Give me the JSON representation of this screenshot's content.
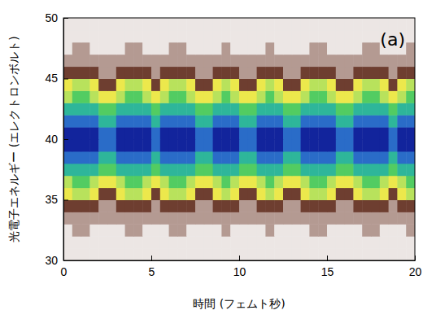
{
  "chart_data": {
    "type": "heatmap",
    "xlabel": "時間 (フェムト秒)",
    "ylabel": "光電子エネルギー (エレクトロンボルト)",
    "annotation": "(a)",
    "xlim": [
      0,
      20
    ],
    "ylim": [
      30,
      50
    ],
    "xticks": [
      0,
      5,
      10,
      15,
      20
    ],
    "yticks": [
      30,
      35,
      40,
      45,
      50
    ],
    "x": [
      0.25,
      0.75,
      1.25,
      1.75,
      2.25,
      2.75,
      3.25,
      3.75,
      4.25,
      4.75,
      5.25,
      5.75,
      6.25,
      6.75,
      7.25,
      7.75,
      8.25,
      8.75,
      9.25,
      9.75,
      10.25,
      10.75,
      11.25,
      11.75,
      12.25,
      12.75,
      13.25,
      13.75,
      14.25,
      14.75,
      15.25,
      15.75,
      16.25,
      16.75,
      17.25,
      17.75,
      18.25,
      18.75,
      19.25,
      19.75
    ],
    "y": [
      30.5,
      31.5,
      32.5,
      33.5,
      34.5,
      35.5,
      36.5,
      37.5,
      38.5,
      39.5,
      40.5,
      41.5,
      42.5,
      43.5,
      44.5,
      45.5,
      46.5,
      47.5,
      48.5,
      49.5
    ],
    "z": [
      [
        1,
        1,
        1,
        1,
        1,
        1,
        1,
        1,
        1,
        1,
        1,
        1,
        1,
        1,
        1,
        1,
        1,
        1,
        1,
        1,
        1,
        1,
        1,
        1,
        1,
        1,
        1,
        1,
        1,
        1,
        1,
        1,
        1,
        1,
        1,
        1,
        1,
        1,
        1,
        1
      ],
      [
        1,
        1,
        1,
        1,
        1,
        1,
        1,
        1,
        1,
        1,
        1,
        1,
        1,
        1,
        1,
        1,
        1,
        1,
        1,
        1,
        1,
        1,
        1,
        1,
        1,
        1,
        1,
        1,
        1,
        1,
        1,
        1,
        1,
        1,
        1,
        1,
        1,
        1,
        1,
        1
      ],
      [
        1,
        2,
        2,
        1,
        1,
        1,
        1,
        2,
        2,
        1,
        1,
        1,
        2,
        2,
        1,
        1,
        1,
        1,
        2,
        1,
        1,
        1,
        1,
        2,
        1,
        1,
        1,
        1,
        2,
        2,
        1,
        1,
        1,
        1,
        2,
        2,
        1,
        1,
        1,
        2
      ],
      [
        2,
        2,
        2,
        2,
        2,
        2,
        2,
        2,
        2,
        2,
        2,
        2,
        2,
        2,
        2,
        2,
        2,
        2,
        2,
        2,
        2,
        2,
        2,
        2,
        2,
        2,
        2,
        2,
        2,
        2,
        2,
        2,
        2,
        2,
        2,
        2,
        2,
        2,
        2,
        2
      ],
      [
        3,
        3,
        3,
        3,
        2,
        2,
        3,
        3,
        3,
        3,
        2,
        3,
        3,
        3,
        3,
        2,
        2,
        3,
        3,
        3,
        2,
        2,
        3,
        3,
        3,
        2,
        2,
        3,
        3,
        3,
        3,
        2,
        2,
        3,
        3,
        3,
        3,
        2,
        3,
        3
      ],
      [
        4,
        5,
        5,
        4,
        3,
        3,
        4,
        5,
        5,
        4,
        3,
        4,
        5,
        5,
        4,
        3,
        3,
        4,
        5,
        4,
        3,
        3,
        4,
        5,
        4,
        3,
        3,
        4,
        5,
        5,
        4,
        3,
        3,
        4,
        5,
        5,
        4,
        3,
        4,
        5
      ],
      [
        5,
        6,
        6,
        5,
        4,
        4,
        5,
        6,
        6,
        5,
        4,
        5,
        6,
        6,
        5,
        4,
        4,
        5,
        6,
        5,
        4,
        4,
        5,
        6,
        5,
        4,
        4,
        5,
        6,
        6,
        5,
        4,
        4,
        5,
        6,
        6,
        5,
        4,
        5,
        6
      ],
      [
        7,
        7,
        7,
        7,
        6,
        6,
        7,
        7,
        7,
        7,
        6,
        7,
        7,
        7,
        7,
        6,
        6,
        7,
        7,
        7,
        6,
        6,
        7,
        7,
        7,
        6,
        6,
        7,
        7,
        7,
        7,
        6,
        6,
        7,
        7,
        7,
        7,
        6,
        7,
        7
      ],
      [
        8,
        8,
        8,
        8,
        7,
        7,
        8,
        8,
        8,
        8,
        7,
        8,
        8,
        8,
        8,
        7,
        7,
        8,
        8,
        8,
        7,
        7,
        8,
        8,
        8,
        7,
        7,
        8,
        8,
        8,
        8,
        7,
        7,
        8,
        8,
        8,
        8,
        7,
        8,
        8
      ],
      [
        9,
        9,
        9,
        9,
        8,
        8,
        9,
        9,
        9,
        9,
        8,
        9,
        9,
        9,
        9,
        8,
        8,
        9,
        9,
        9,
        8,
        8,
        9,
        9,
        9,
        8,
        8,
        9,
        9,
        9,
        9,
        8,
        8,
        9,
        9,
        9,
        9,
        8,
        9,
        9
      ],
      [
        9,
        9,
        9,
        9,
        8,
        8,
        9,
        9,
        9,
        9,
        8,
        9,
        9,
        9,
        9,
        8,
        8,
        9,
        9,
        9,
        8,
        8,
        9,
        9,
        9,
        8,
        8,
        9,
        9,
        9,
        9,
        8,
        8,
        9,
        9,
        9,
        9,
        8,
        9,
        9
      ],
      [
        8,
        8,
        8,
        8,
        7,
        7,
        8,
        8,
        8,
        8,
        7,
        8,
        8,
        8,
        8,
        7,
        7,
        8,
        8,
        8,
        7,
        7,
        8,
        8,
        8,
        7,
        7,
        8,
        8,
        8,
        8,
        7,
        7,
        8,
        8,
        8,
        8,
        7,
        8,
        8
      ],
      [
        7,
        7,
        7,
        7,
        6,
        6,
        7,
        7,
        7,
        7,
        6,
        7,
        7,
        7,
        7,
        6,
        6,
        7,
        7,
        7,
        6,
        6,
        7,
        7,
        7,
        6,
        6,
        7,
        7,
        7,
        7,
        6,
        6,
        7,
        7,
        7,
        7,
        6,
        7,
        7
      ],
      [
        5,
        6,
        6,
        5,
        4,
        4,
        5,
        6,
        6,
        5,
        4,
        5,
        6,
        6,
        5,
        4,
        4,
        5,
        6,
        5,
        4,
        4,
        5,
        6,
        5,
        4,
        4,
        5,
        6,
        6,
        5,
        4,
        4,
        5,
        6,
        6,
        5,
        4,
        5,
        6
      ],
      [
        4,
        5,
        5,
        4,
        3,
        3,
        4,
        5,
        5,
        4,
        3,
        4,
        5,
        5,
        4,
        3,
        3,
        4,
        5,
        4,
        3,
        3,
        4,
        5,
        4,
        3,
        3,
        4,
        5,
        5,
        4,
        3,
        3,
        4,
        5,
        5,
        4,
        3,
        4,
        5
      ],
      [
        3,
        3,
        3,
        3,
        2,
        2,
        3,
        3,
        3,
        3,
        2,
        3,
        3,
        3,
        3,
        2,
        2,
        3,
        3,
        3,
        2,
        2,
        3,
        3,
        3,
        2,
        2,
        3,
        3,
        3,
        3,
        2,
        2,
        3,
        3,
        3,
        3,
        2,
        3,
        3
      ],
      [
        2,
        2,
        2,
        2,
        2,
        2,
        2,
        2,
        2,
        2,
        2,
        2,
        2,
        2,
        2,
        2,
        2,
        2,
        2,
        2,
        2,
        2,
        2,
        2,
        2,
        2,
        2,
        2,
        2,
        2,
        2,
        2,
        2,
        2,
        2,
        2,
        2,
        2,
        2,
        2
      ],
      [
        1,
        2,
        2,
        1,
        1,
        1,
        1,
        2,
        2,
        1,
        1,
        1,
        2,
        2,
        1,
        1,
        1,
        1,
        2,
        1,
        1,
        1,
        1,
        2,
        1,
        1,
        1,
        1,
        2,
        2,
        1,
        1,
        1,
        1,
        2,
        2,
        1,
        1,
        1,
        2
      ],
      [
        1,
        1,
        1,
        1,
        1,
        1,
        1,
        1,
        1,
        1,
        1,
        1,
        1,
        1,
        1,
        1,
        1,
        1,
        1,
        1,
        1,
        1,
        1,
        1,
        1,
        1,
        1,
        1,
        1,
        1,
        1,
        1,
        1,
        1,
        1,
        1,
        1,
        1,
        1,
        1
      ],
      [
        1,
        1,
        1,
        1,
        1,
        1,
        1,
        1,
        1,
        1,
        1,
        1,
        1,
        1,
        1,
        1,
        1,
        1,
        1,
        1,
        1,
        1,
        1,
        1,
        1,
        1,
        1,
        1,
        1,
        1,
        1,
        1,
        1,
        1,
        1,
        1,
        1,
        1,
        1,
        1
      ]
    ]
  }
}
